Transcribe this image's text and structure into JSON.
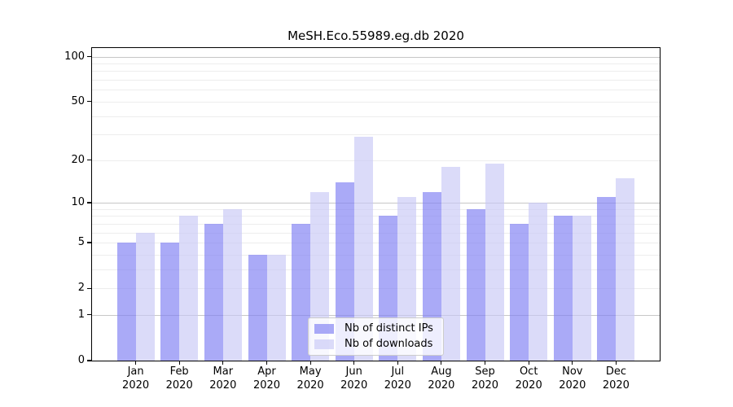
{
  "title": "MeSH.Eco.55989.eg.db 2020",
  "chart_data": {
    "type": "bar",
    "y_scale": "log1p",
    "grid": true,
    "legend_position": "bottom-center-inside",
    "categories": [
      "Jan",
      "Feb",
      "Mar",
      "Apr",
      "May",
      "Jun",
      "Jul",
      "Aug",
      "Sep",
      "Oct",
      "Nov",
      "Dec"
    ],
    "x_year_label": "2020",
    "series": [
      {
        "name": "Nb of distinct IPs",
        "color": "rgba(130,130,243,0.68)",
        "values": [
          5,
          5,
          7,
          4,
          7,
          14,
          8,
          12,
          9,
          7,
          8,
          11
        ]
      },
      {
        "name": "Nb of downloads",
        "color": "rgba(200,200,246,0.65)",
        "values": [
          6,
          8,
          9,
          4,
          12,
          29,
          11,
          18,
          19,
          10,
          8,
          15
        ]
      }
    ],
    "y_ticks": [
      0,
      1,
      2,
      5,
      10,
      20,
      50,
      100
    ],
    "ylim": [
      0,
      112
    ],
    "gridlines": {
      "major": [
        1,
        10,
        100
      ],
      "minor": [
        2,
        3,
        4,
        5,
        6,
        7,
        8,
        9,
        20,
        30,
        40,
        50,
        60,
        70,
        80,
        90
      ]
    }
  },
  "colors": {
    "axis": "#000000",
    "major_grid": "#c7c7c7",
    "minor_grid": "#ededed",
    "text": "#000000"
  }
}
